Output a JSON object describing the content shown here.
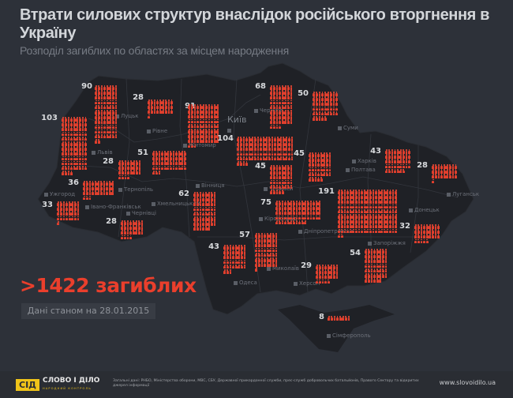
{
  "header": {
    "title": "Втрати силових структур внаслідок російського вторгнення в Україну",
    "subtitle": "Розподіл загиблих по областях за місцем народження"
  },
  "colors": {
    "background": "#2d3139",
    "land": "#1f2126",
    "accent": "#e8402f",
    "logo": "#f0c419"
  },
  "icon": "person-icon",
  "regions": [
    {
      "id": "lviv-west",
      "value": 103
    },
    {
      "id": "volyn",
      "value": 90
    },
    {
      "id": "rivne",
      "value": 28
    },
    {
      "id": "zhytomyr",
      "value": 91
    },
    {
      "id": "kyiv",
      "value": 104
    },
    {
      "id": "chernihiv",
      "value": 68
    },
    {
      "id": "sumy",
      "value": 50
    },
    {
      "id": "khmelnytskyi",
      "value": 51
    },
    {
      "id": "ternopil",
      "value": 28
    },
    {
      "id": "ivano-frankivsk",
      "value": 36
    },
    {
      "id": "zakarpattia",
      "value": 33
    },
    {
      "id": "chernivtsi",
      "value": 28
    },
    {
      "id": "vinnytsia",
      "value": 62
    },
    {
      "id": "cherkasy",
      "value": 45
    },
    {
      "id": "poltava",
      "value": 45
    },
    {
      "id": "kharkiv",
      "value": 43
    },
    {
      "id": "luhansk",
      "value": 28
    },
    {
      "id": "dnipropetrovsk",
      "value": 191
    },
    {
      "id": "kirovohrad",
      "value": 75
    },
    {
      "id": "donetsk",
      "value": 32
    },
    {
      "id": "mykolaiv",
      "value": 57
    },
    {
      "id": "odesa",
      "value": 43
    },
    {
      "id": "kherson",
      "value": 29
    },
    {
      "id": "zaporizhzhia",
      "value": 54
    },
    {
      "id": "crimea",
      "value": 8
    }
  ],
  "cities": [
    "Луцьк",
    "Рівне",
    "Житомир",
    "Київ",
    "Чернігів",
    "Суми",
    "Львів",
    "Тернопіль",
    "Хмельницький",
    "Вінниця",
    "Ужгород",
    "Івано-Франківськ",
    "Чернівці",
    "Черкаси",
    "Полтава",
    "Харків",
    "Луганськ",
    "Кіровоград",
    "Дніпропетровськ",
    "Донецьк",
    "Запоріжжя",
    "Миколаїв",
    "Херсон",
    "Одеса",
    "Сімферополь"
  ],
  "summary": {
    "total": ">1422 загиблих",
    "as_of": "Дані станом на 28.01.2015"
  },
  "footer": {
    "logo_mark": "СІД",
    "logo_name": "СЛОВО І ДІЛО",
    "logo_sub": "НАРОДНИЙ КОНТРОЛЬ",
    "sources": "Загальні дані: РНБО, Міністерства оборони, МВС, СБУ, Державної прикордонної служби, прес-служб добровольчих батальйонів, Правого Сектору та відкритих джерел інформації",
    "url": "www.slovoidilo.ua"
  }
}
